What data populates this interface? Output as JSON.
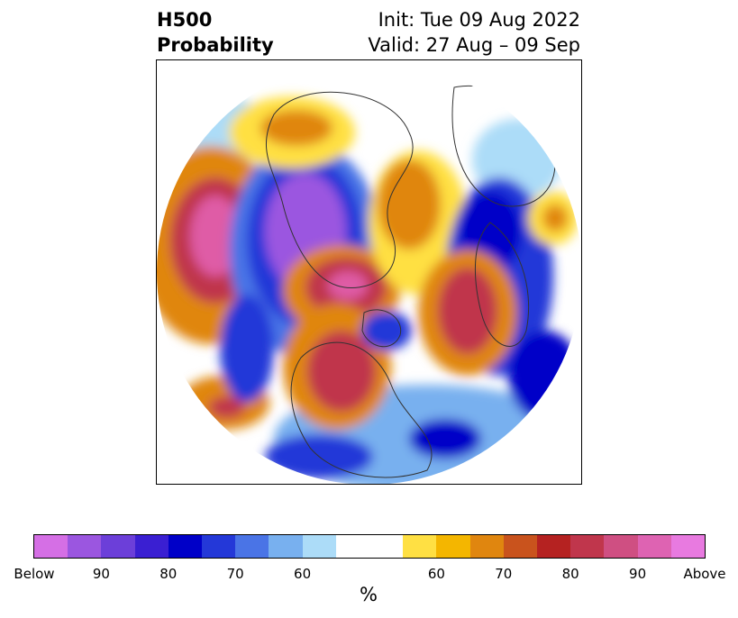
{
  "title": {
    "left_line1": "H500",
    "left_line2": "Probability",
    "right_line1": "Init: Tue 09 Aug 2022",
    "right_line2": "Valid: 27 Aug – 09 Sep"
  },
  "map": {
    "projection": "polar stereographic (north polar view)",
    "colors": {
      "below_strong": "#9b56e0",
      "below": "#2432d8",
      "below_weak": "#7ab3ef",
      "near_normal": "#ffffff",
      "above_weak": "#ffe043",
      "above": "#e0860f",
      "above_strong": "#c0364c",
      "above_max": "#df5ca6"
    }
  },
  "colorbar": {
    "colors": [
      "#d56fe5",
      "#9b56e0",
      "#6c3fd9",
      "#3a1fd2",
      "#0000c8",
      "#2438d8",
      "#4a74e6",
      "#78b0ef",
      "#acdcf8",
      "#ffffff",
      "#ffffff",
      "#ffe043",
      "#f4b600",
      "#e0860f",
      "#c9531d",
      "#b52221",
      "#c0364c",
      "#cf4f82",
      "#de63b2",
      "#e87ae0"
    ],
    "tick_labels": [
      "Below",
      "90",
      "80",
      "70",
      "60",
      "60",
      "70",
      "80",
      "90",
      "Above"
    ],
    "label": "%"
  }
}
